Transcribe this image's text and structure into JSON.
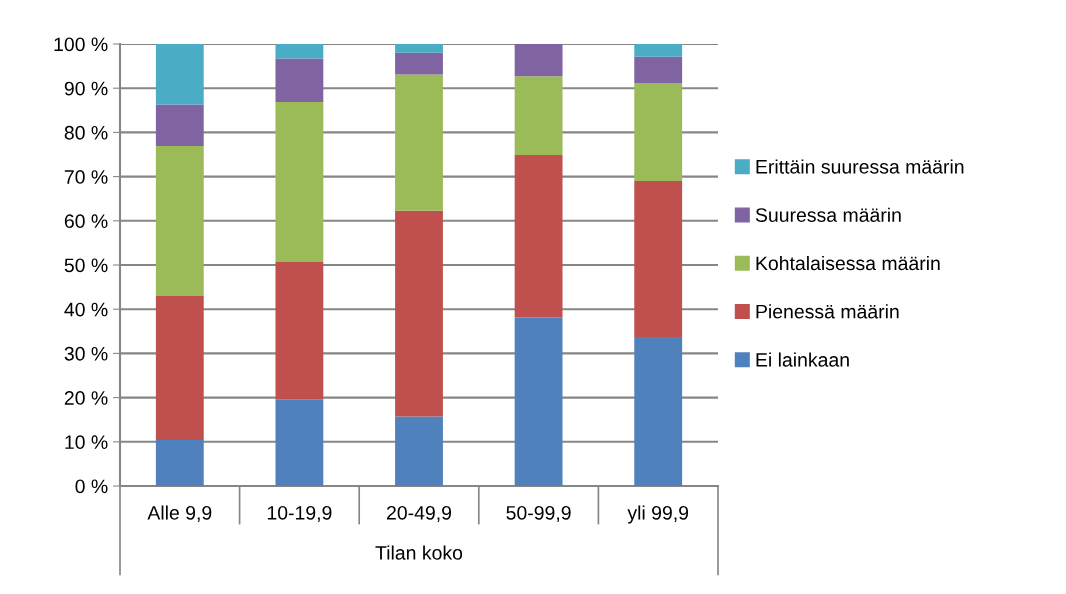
{
  "chart_data": {
    "type": "bar",
    "stacked": true,
    "xlabel": "Tilan koko",
    "categories": [
      "Alle 9,9",
      "10-19,9",
      "20-49,9",
      "50-99,9",
      "yli 99,9"
    ],
    "series": [
      {
        "name": "Ei lainkaan",
        "color": "#4f81bd",
        "values": [
          10.4,
          19.6,
          15.7,
          38.1,
          33.7
        ]
      },
      {
        "name": "Pienessä määrin",
        "color": "#c0504d",
        "values": [
          32.6,
          31.1,
          46.6,
          36.8,
          35.3
        ]
      },
      {
        "name": "Kohtalaisessa määrin",
        "color": "#9bbb59",
        "values": [
          33.9,
          36.2,
          30.8,
          17.8,
          22.2
        ]
      },
      {
        "name": "Suuressa määrin",
        "color": "#8064a2",
        "values": [
          9.4,
          9.8,
          4.9,
          7.3,
          5.9
        ]
      },
      {
        "name": "Erittäin suuressa määrin",
        "color": "#4bacc6",
        "values": [
          13.7,
          3.3,
          2.0,
          0,
          2.9
        ]
      }
    ],
    "ylim": [
      0,
      100
    ],
    "yticks": [
      {
        "value": 0,
        "label": "0 %"
      },
      {
        "value": 10,
        "label": "10 %"
      },
      {
        "value": 20,
        "label": "20 %"
      },
      {
        "value": 30,
        "label": "30 %"
      },
      {
        "value": 40,
        "label": "40 %"
      },
      {
        "value": 50,
        "label": "50 %"
      },
      {
        "value": 60,
        "label": "60 %"
      },
      {
        "value": 70,
        "label": "70 %"
      },
      {
        "value": 80,
        "label": "80 %"
      },
      {
        "value": 90,
        "label": "90 %"
      },
      {
        "value": 100,
        "label": "100 %"
      }
    ],
    "grid": "y",
    "legend": "right"
  }
}
